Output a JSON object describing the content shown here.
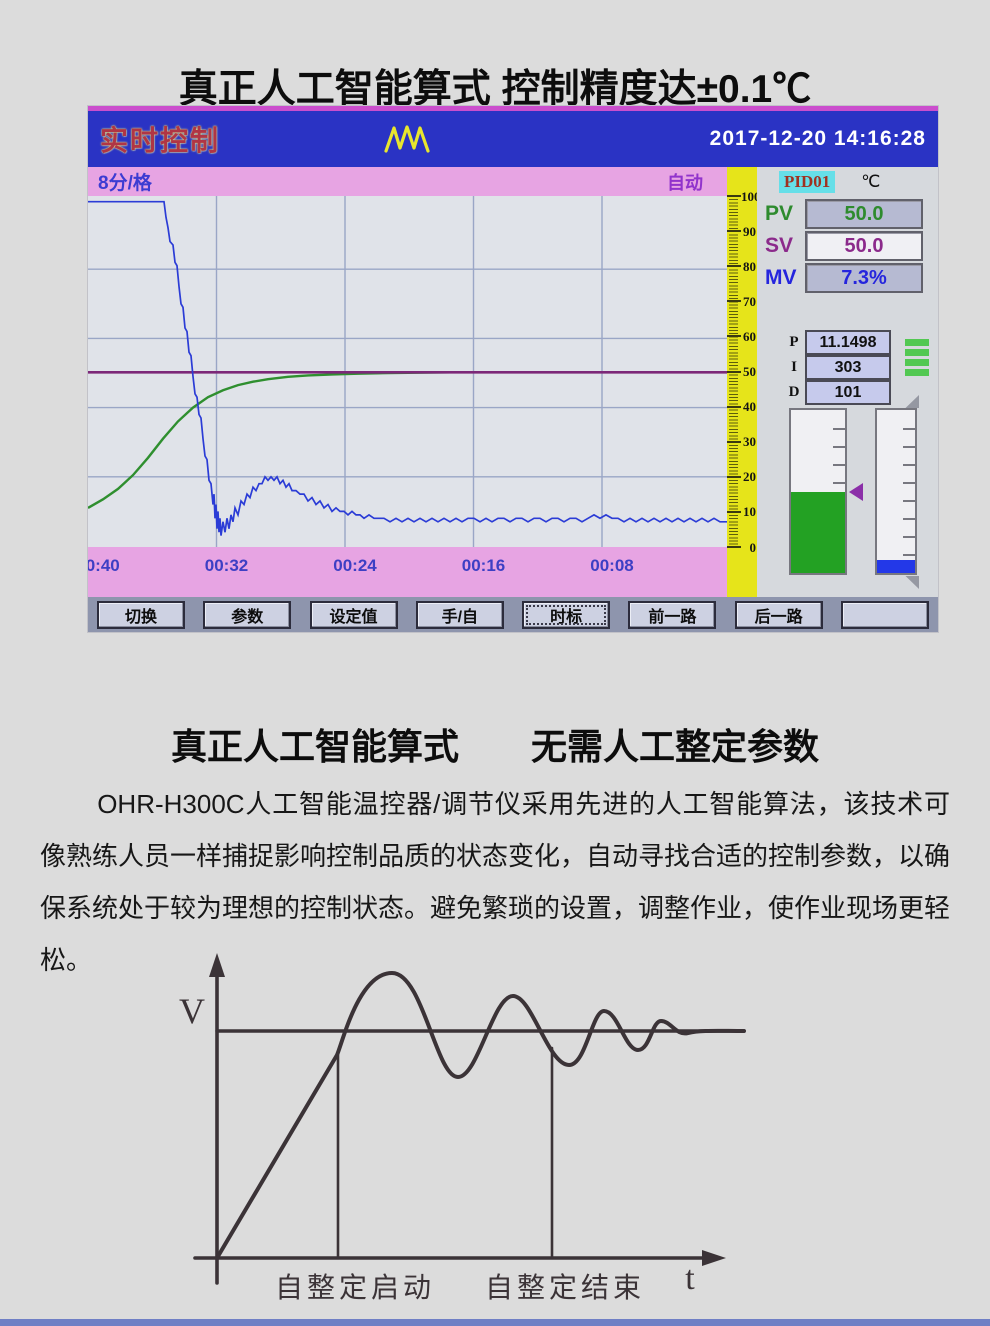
{
  "page": {
    "top_title": "真正人工智能算式 控制精度达±0.1℃",
    "mid_title": "真正人工智能算式　　无需人工整定参数",
    "paragraph": "OHR-H300C人工智能温控器/调节仪采用先进的人工智能算法，该技术可像熟练人员一样捕捉影响控制品质的状态变化，自动寻找合适的控制参数，以确保系统处于较为理想的控制状态。避免繁琐的设置，调整作业，使作业现场更轻松。"
  },
  "device": {
    "header": {
      "title": "实时控制",
      "logo": "wave-logo",
      "datetime": "2017-12-20 14:16:28"
    },
    "info_bar": {
      "time_per_div": "8分/格",
      "mode": "自动"
    },
    "scale": {
      "ticks": [
        100,
        90,
        80,
        70,
        60,
        50,
        40,
        30,
        20,
        10,
        0
      ]
    },
    "panel": {
      "channel": "PID01",
      "unit": "℃",
      "pv": {
        "label": "PV",
        "value": "50.0"
      },
      "sv": {
        "label": "SV",
        "value": "50.0"
      },
      "mv": {
        "label": "MV",
        "value": "7.3%"
      },
      "pid_params": [
        {
          "label": "P",
          "value": "11.1498"
        },
        {
          "label": "I",
          "value": "303"
        },
        {
          "label": "D",
          "value": "101"
        }
      ],
      "signal_bars": 4,
      "gauges": {
        "output_fill_percent": 50,
        "aux_fill_percent": 8
      }
    },
    "buttons": [
      "切换",
      "参数",
      "设定值",
      "手/自",
      "时标",
      "前一路",
      "后一路",
      ""
    ],
    "active_button": "时标",
    "trend_chart": {
      "type": "line",
      "y_axis": {
        "min": 0,
        "max": 100,
        "grid_step": 20
      },
      "x_axis": {
        "labels": [
          "00:40",
          "00:32",
          "00:24",
          "00:16",
          "00:08"
        ],
        "minutes_per_div": 8
      },
      "sv_line_value": 50.2,
      "series": [
        {
          "name": "PV",
          "color": "#2b3cd6",
          "points": [
            [
              0,
              99.5
            ],
            [
              76,
              99.5
            ],
            [
              78,
              95
            ],
            [
              80,
              92
            ],
            [
              82,
              88
            ],
            [
              85,
              87
            ],
            [
              87,
              82
            ],
            [
              89,
              81
            ],
            [
              91,
              75
            ],
            [
              93,
              70
            ],
            [
              95,
              69
            ],
            [
              97,
              63
            ],
            [
              99,
              62
            ],
            [
              101,
              56
            ],
            [
              103,
              55
            ],
            [
              105,
              49
            ],
            [
              107,
              44
            ],
            [
              109,
              43
            ],
            [
              111,
              38
            ],
            [
              113,
              37
            ],
            [
              115,
              31
            ],
            [
              117,
              26
            ],
            [
              119,
              25
            ],
            [
              121,
              19
            ],
            [
              123,
              18
            ],
            [
              125,
              12
            ],
            [
              126,
              15
            ],
            [
              127,
              8
            ],
            [
              128,
              12
            ],
            [
              129,
              5
            ],
            [
              130,
              10
            ],
            [
              131,
              4
            ],
            [
              132,
              8
            ],
            [
              133,
              3
            ],
            [
              135,
              7
            ],
            [
              137,
              4
            ],
            [
              139,
              8
            ],
            [
              141,
              5
            ],
            [
              143,
              9
            ],
            [
              145,
              7
            ],
            [
              147,
              11
            ],
            [
              150,
              9
            ],
            [
              153,
              13
            ],
            [
              156,
              12
            ],
            [
              159,
              15
            ],
            [
              162,
              14
            ],
            [
              165,
              17
            ],
            [
              168,
              16
            ],
            [
              171,
              18
            ],
            [
              174,
              18
            ],
            [
              177,
              20
            ],
            [
              180,
              19
            ],
            [
              183,
              20
            ],
            [
              186,
              19
            ],
            [
              189,
              20
            ],
            [
              192,
              18
            ],
            [
              195,
              19
            ],
            [
              198,
              17
            ],
            [
              201,
              18
            ],
            [
              204,
              16
            ],
            [
              208,
              16
            ],
            [
              212,
              15
            ],
            [
              216,
              15
            ],
            [
              220,
              13
            ],
            [
              224,
              14
            ],
            [
              228,
              12
            ],
            [
              232,
              13
            ],
            [
              236,
              11
            ],
            [
              240,
              12
            ],
            [
              244,
              10
            ],
            [
              248,
              11
            ],
            [
              252,
              10
            ],
            [
              256,
              10
            ],
            [
              260,
              9
            ],
            [
              264,
              10
            ],
            [
              268,
              9
            ],
            [
              272,
              9
            ],
            [
              276,
              8
            ],
            [
              281,
              9
            ],
            [
              286,
              8
            ],
            [
              291,
              8
            ],
            [
              296,
              8
            ],
            [
              302,
              7
            ],
            [
              308,
              8
            ],
            [
              314,
              7
            ],
            [
              320,
              8
            ],
            [
              326,
              7
            ],
            [
              332,
              8
            ],
            [
              338,
              7
            ],
            [
              344,
              8
            ],
            [
              350,
              7
            ],
            [
              356,
              8
            ],
            [
              362,
              7
            ],
            [
              368,
              8
            ],
            [
              374,
              7
            ],
            [
              380,
              8
            ],
            [
              386,
              8
            ],
            [
              392,
              7
            ],
            [
              398,
              8
            ],
            [
              404,
              7
            ],
            [
              410,
              8
            ],
            [
              416,
              8
            ],
            [
              422,
              7
            ],
            [
              428,
              8
            ],
            [
              434,
              8
            ],
            [
              440,
              7
            ],
            [
              446,
              8
            ],
            [
              452,
              8
            ],
            [
              458,
              7
            ],
            [
              464,
              8
            ],
            [
              470,
              8
            ],
            [
              476,
              7
            ],
            [
              482,
              8
            ],
            [
              488,
              8
            ],
            [
              494,
              7
            ],
            [
              500,
              8
            ],
            [
              506,
              9
            ],
            [
              512,
              8
            ],
            [
              518,
              9
            ],
            [
              524,
              8
            ],
            [
              530,
              8
            ],
            [
              536,
              7
            ],
            [
              542,
              8
            ],
            [
              548,
              7
            ],
            [
              554,
              8
            ],
            [
              560,
              7
            ],
            [
              566,
              8
            ],
            [
              572,
              7
            ],
            [
              578,
              8
            ],
            [
              584,
              7
            ],
            [
              590,
              8
            ],
            [
              596,
              7
            ],
            [
              602,
              8
            ],
            [
              608,
              7
            ],
            [
              614,
              8
            ],
            [
              620,
              7
            ],
            [
              626,
              8
            ],
            [
              632,
              7
            ],
            [
              639,
              7
            ]
          ]
        },
        {
          "name": "MV",
          "color": "#2f8f2f",
          "points": [
            [
              0,
              11
            ],
            [
              15,
              13.5
            ],
            [
              30,
              16.5
            ],
            [
              45,
              20.5
            ],
            [
              60,
              25.5
            ],
            [
              75,
              31
            ],
            [
              90,
              36
            ],
            [
              105,
              40
            ],
            [
              120,
              43
            ],
            [
              135,
              45
            ],
            [
              150,
              46.5
            ],
            [
              165,
              47.5
            ],
            [
              180,
              48.2
            ],
            [
              200,
              48.9
            ],
            [
              220,
              49.3
            ],
            [
              245,
              49.6
            ],
            [
              270,
              49.8
            ],
            [
              300,
              50
            ],
            [
              330,
              50.1
            ],
            [
              362,
              50.2
            ]
          ]
        }
      ]
    }
  },
  "diagram": {
    "y_label": "V",
    "x_label": "t",
    "annotation_start": "自整定启动",
    "annotation_end": "自整定结束"
  },
  "colors": {
    "header_blue": "#2a33c4",
    "pink_bar": "#e7a4e3",
    "scale_yellow": "#e6e41a",
    "pv_green": "#2e8b2e",
    "sv_purple": "#8b2a8b",
    "mv_blue": "#2525dd",
    "sv_line": "#7c2878",
    "button_bar": "#8e95ad"
  }
}
